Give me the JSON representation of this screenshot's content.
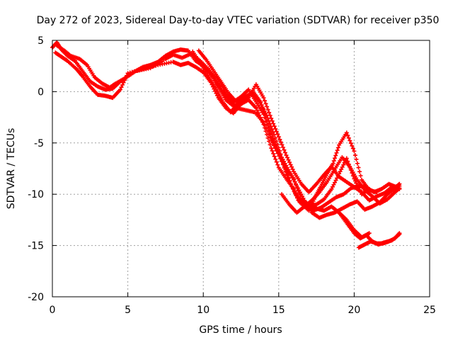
{
  "chart_data": {
    "type": "scatter",
    "title": "Day 272 of 2023, Sidereal Day-to-day VTEC variation (SDTVAR) for receiver p350",
    "xlabel": "GPS time / hours",
    "ylabel": "SDTVAR / TECUs",
    "xlim": [
      0,
      25
    ],
    "ylim": [
      -20,
      5
    ],
    "xticks": [
      0,
      5,
      10,
      15,
      20,
      25
    ],
    "yticks": [
      -20,
      -15,
      -10,
      -5,
      0,
      5
    ],
    "grid": true,
    "marker": "plus",
    "color": "#ff0000",
    "series": [
      {
        "x": [
          0.0,
          0.3,
          0.6,
          1.0,
          1.5,
          2.0,
          2.5,
          3.0,
          3.5,
          4.0,
          4.5,
          5.0,
          5.5,
          6.0,
          6.5,
          7.0,
          7.5,
          8.0,
          8.5,
          9.0,
          9.5,
          10.0,
          10.5,
          11.0,
          11.5,
          12.0,
          12.5,
          13.0,
          13.5,
          14.0,
          14.5,
          15.0,
          15.5,
          16.0,
          16.5,
          17.0,
          17.5,
          18.0,
          18.5,
          19.0,
          19.5,
          20.0,
          20.5,
          21.0
        ],
        "y": [
          4.3,
          4.8,
          4.1,
          3.5,
          3.0,
          2.0,
          1.0,
          0.5,
          0.2,
          0.3,
          1.0,
          1.5,
          2.0,
          2.4,
          2.6,
          2.9,
          3.5,
          3.9,
          4.1,
          4.0,
          3.0,
          2.5,
          1.7,
          0.6,
          -0.4,
          -1.0,
          -0.5,
          0.2,
          -1.0,
          -2.2,
          -4.5,
          -6.0,
          -7.5,
          -8.5,
          -10.5,
          -11.0,
          -11.4,
          -11.6,
          -11.2,
          -11.8,
          -12.5,
          -13.5,
          -14.2,
          -13.8
        ]
      },
      {
        "x": [
          0.2,
          0.6,
          1.0,
          1.6,
          2.0,
          2.5,
          3.0,
          3.5,
          4.0,
          4.5,
          5.0,
          6.0,
          7.0,
          8.0,
          8.5,
          9.0,
          9.5,
          10.0,
          10.5,
          11.0,
          11.5,
          12.0,
          12.5,
          13.0,
          13.5,
          14.0,
          14.5,
          15.0,
          15.5,
          16.0,
          16.5,
          17.0,
          17.5,
          18.0,
          18.5,
          19.0,
          19.5,
          20.0,
          20.5,
          21.0
        ],
        "y": [
          3.8,
          3.4,
          3.0,
          2.2,
          1.5,
          0.5,
          -0.3,
          -0.4,
          -0.6,
          0.2,
          1.8,
          2.2,
          2.6,
          2.9,
          2.6,
          2.8,
          2.4,
          1.9,
          0.9,
          -0.6,
          -1.6,
          -2.1,
          -1.2,
          -0.8,
          -1.6,
          -3.2,
          -5.5,
          -7.4,
          -8.5,
          -9.5,
          -10.8,
          -11.2,
          -11.0,
          -10.5,
          -9.5,
          -8.0,
          -6.5,
          -8.5,
          -10.0,
          -9.5
        ]
      },
      {
        "x": [
          0.3,
          0.8,
          1.2,
          1.8,
          2.3,
          2.8,
          3.3,
          3.8,
          4.2,
          4.8,
          5.5,
          6.5,
          7.5,
          8.0,
          8.6,
          9.2,
          9.8,
          10.4,
          11.0,
          11.6,
          12.2,
          12.8,
          13.4,
          14.0,
          14.6,
          15.2,
          15.8,
          16.4,
          17.0,
          17.4,
          17.8,
          18.2,
          18.6,
          19.0,
          19.5,
          20.0,
          20.5,
          21.0,
          21.5
        ],
        "y": [
          4.5,
          4.0,
          3.5,
          3.2,
          2.6,
          1.4,
          0.8,
          0.4,
          0.8,
          1.3,
          2.0,
          2.3,
          3.2,
          3.6,
          3.3,
          3.7,
          3.0,
          2.1,
          1.0,
          -0.2,
          -1.6,
          -1.8,
          -2.0,
          -3.0,
          -5.0,
          -6.8,
          -9.0,
          -10.8,
          -11.6,
          -10.3,
          -9.2,
          -8.0,
          -7.0,
          -5.2,
          -4.0,
          -5.8,
          -8.6,
          -9.6,
          -9.8
        ]
      },
      {
        "x": [
          9.3,
          9.8,
          10.3,
          10.8,
          11.3,
          11.8,
          12.3,
          12.8,
          13.3,
          13.8,
          14.3,
          14.8,
          15.3,
          15.8,
          16.3,
          16.8,
          17.3,
          17.8,
          18.3,
          18.8,
          19.3,
          19.8,
          20.3,
          20.8,
          21.3,
          21.8,
          22.3,
          22.8,
          23.0
        ],
        "y": [
          3.9,
          2.8,
          1.6,
          0.4,
          -1.0,
          -2.0,
          -1.2,
          -0.5,
          0.0,
          -1.0,
          -3.2,
          -5.2,
          -7.0,
          -9.0,
          -10.6,
          -11.2,
          -11.6,
          -11.3,
          -10.8,
          -10.3,
          -10.0,
          -9.4,
          -9.2,
          -9.3,
          -9.8,
          -9.5,
          -9.0,
          -9.3,
          -9.5
        ]
      },
      {
        "x": [
          9.7,
          10.2,
          10.7,
          11.2,
          11.7,
          12.2,
          12.7,
          13.2,
          13.7,
          14.2,
          14.7,
          15.2,
          15.7,
          16.2,
          16.7,
          17.2,
          17.7,
          18.2,
          18.7,
          19.2,
          19.7,
          20.2,
          20.7,
          21.2,
          21.7,
          22.2,
          22.7,
          23.0
        ],
        "y": [
          4.0,
          3.1,
          2.0,
          0.9,
          -0.2,
          -1.0,
          -0.6,
          -0.2,
          -0.9,
          -2.3,
          -4.2,
          -6.4,
          -7.8,
          -9.2,
          -10.6,
          -11.8,
          -12.3,
          -12.0,
          -11.8,
          -11.4,
          -11.0,
          -10.7,
          -11.5,
          -11.2,
          -10.8,
          -10.0,
          -9.4,
          -9.0
        ]
      },
      {
        "x": [
          10.0,
          10.5,
          11.0,
          11.5,
          12.0,
          12.5,
          13.0,
          13.5,
          14.0,
          14.5,
          15.0,
          15.5,
          16.0,
          16.5,
          17.0,
          17.5,
          18.0,
          18.5,
          19.0,
          19.5,
          20.0,
          20.5,
          21.0,
          21.5,
          22.0,
          22.5,
          23.0
        ],
        "y": [
          2.5,
          1.8,
          0.5,
          -0.8,
          -1.4,
          -1.1,
          -0.6,
          0.7,
          -0.6,
          -2.6,
          -4.4,
          -6.2,
          -7.8,
          -9.0,
          -9.8,
          -9.0,
          -8.1,
          -7.3,
          -8.3,
          -8.8,
          -9.3,
          -9.8,
          -10.6,
          -10.2,
          -9.9,
          -9.3,
          -9.2
        ]
      },
      {
        "x": [
          15.2,
          15.7,
          16.2,
          16.7,
          17.2,
          17.7,
          18.2,
          18.7,
          19.2,
          19.7,
          20.2,
          20.7,
          21.2,
          21.7,
          22.2,
          22.7,
          23.0
        ],
        "y": [
          -10.0,
          -11.0,
          -11.8,
          -11.2,
          -10.6,
          -9.8,
          -8.8,
          -7.6,
          -6.4,
          -7.3,
          -8.6,
          -9.6,
          -10.2,
          -10.9,
          -10.5,
          -9.8,
          -9.4
        ]
      },
      {
        "x": [
          19.0,
          19.5,
          20.0,
          20.4,
          20.8,
          21.2,
          21.6,
          22.0,
          22.5,
          23.0
        ],
        "y": [
          -11.8,
          -12.8,
          -13.8,
          -14.3,
          -14.0,
          -14.6,
          -14.9,
          -14.7,
          -14.5,
          -13.9
        ]
      },
      {
        "x": [
          20.3,
          20.7,
          21.1,
          21.5,
          21.9,
          22.3,
          22.7,
          23.0
        ],
        "y": [
          -15.2,
          -14.9,
          -14.6,
          -14.8,
          -14.8,
          -14.6,
          -14.3,
          -13.8
        ]
      }
    ]
  }
}
